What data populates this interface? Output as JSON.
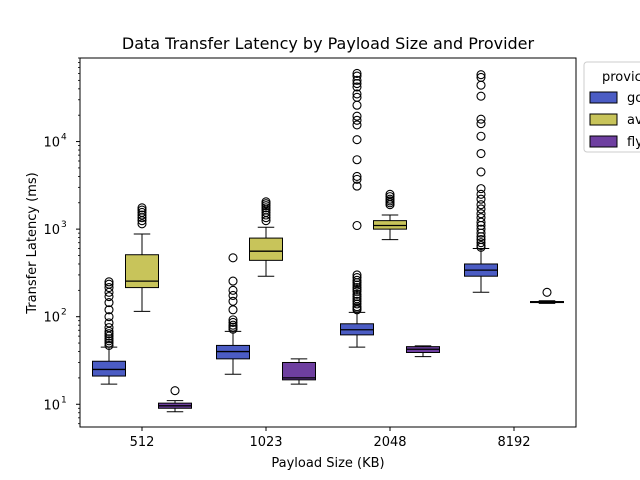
{
  "chart_data": {
    "type": "box",
    "title": "Data Transfer Latency by Payload Size and Provider",
    "xlabel": "Payload Size (KB)",
    "ylabel": "Transfer Latency (ms)",
    "y_scale": "log",
    "ylim": [
      5.5,
      90000
    ],
    "grid": false,
    "categories": [
      "512",
      "1023",
      "2048",
      "8192"
    ],
    "legend": {
      "title": "provic",
      "placement": "upper-right-outside",
      "entries": [
        "go",
        "av",
        "fly"
      ]
    },
    "series": [
      {
        "name": "go",
        "color": "#4b5cc4",
        "boxes": [
          {
            "category": "512",
            "whisker_low": 17,
            "q1": 21,
            "median": 25,
            "q3": 31,
            "whisker_high": 45,
            "outliers": [
              47,
              50,
              53,
              56,
              60,
              64,
              68,
              75,
              85,
              100,
              120,
              145,
              170,
              190,
              215,
              235,
              250
            ]
          },
          {
            "category": "1023",
            "whisker_low": 22,
            "q1": 33,
            "median": 40,
            "q3": 47,
            "whisker_high": 68,
            "outliers": [
              72,
              76,
              80,
              86,
              92,
              120,
              150,
              175,
              200,
              255,
              470
            ]
          },
          {
            "category": "2048",
            "whisker_low": 45,
            "q1": 62,
            "median": 71,
            "q3": 83,
            "whisker_high": 112,
            "outliers": [
              120,
              125,
              130,
              140,
              150,
              160,
              170,
              180,
              195,
              205,
              215,
              230,
              245,
              260,
              280,
              300,
              1100,
              3100,
              3700,
              4000,
              6200,
              10500,
              15500,
              17500,
              19500,
              26000,
              32000,
              35000,
              42000,
              46000,
              50000,
              56000,
              60000
            ]
          },
          {
            "category": "8192",
            "whisker_low": 190,
            "q1": 290,
            "median": 340,
            "q3": 400,
            "whisker_high": 600,
            "outliers": [
              620,
              650,
              700,
              760,
              820,
              900,
              1000,
              1100,
              1200,
              1350,
              1500,
              1700,
              1900,
              2200,
              2500,
              2900,
              4500,
              7300,
              11500,
              16000,
              18000,
              33000,
              44000,
              54000,
              58000
            ]
          }
        ]
      },
      {
        "name": "av",
        "color": "#c8c45a",
        "boxes": [
          {
            "category": "512",
            "whisker_low": 115,
            "q1": 215,
            "median": 255,
            "q3": 510,
            "whisker_high": 880,
            "outliers": [
              1150,
              1250,
              1350,
              1450,
              1550,
              1650,
              1750
            ]
          },
          {
            "category": "1023",
            "whisker_low": 290,
            "q1": 440,
            "median": 560,
            "q3": 790,
            "whisker_high": 1050,
            "outliers": [
              1250,
              1350,
              1450,
              1550,
              1650,
              1750,
              1850,
              1950,
              2050
            ]
          },
          {
            "category": "2048",
            "whisker_low": 760,
            "q1": 1000,
            "median": 1100,
            "q3": 1250,
            "whisker_high": 1450,
            "outliers": [
              1900,
              2000,
              2100,
              2200,
              2350,
              2500
            ]
          },
          {
            "category": "8192",
            "whisker_low": null,
            "q1": null,
            "median": null,
            "q3": null,
            "whisker_high": null,
            "outliers": []
          }
        ]
      },
      {
        "name": "fly",
        "color": "#6e3fa0",
        "boxes": [
          {
            "category": "512",
            "whisker_low": 8.2,
            "q1": 9,
            "median": 9.6,
            "q3": 10.3,
            "whisker_high": 11,
            "outliers": [
              14.3
            ]
          },
          {
            "category": "1023",
            "whisker_low": 17,
            "q1": 19,
            "median": 20,
            "q3": 30,
            "whisker_high": 33,
            "outliers": []
          },
          {
            "category": "2048",
            "whisker_low": 35,
            "q1": 39,
            "median": 42.5,
            "q3": 45.5,
            "whisker_high": 46.5,
            "outliers": []
          },
          {
            "category": "8192",
            "whisker_low": 142,
            "q1": 145,
            "median": 147,
            "q3": 149,
            "whisker_high": 152,
            "outliers": [
              190
            ]
          }
        ]
      }
    ],
    "y_ticks": [
      {
        "value": 10,
        "base": "10",
        "exp": "1"
      },
      {
        "value": 100,
        "base": "10",
        "exp": "2"
      },
      {
        "value": 1000,
        "base": "10",
        "exp": "3"
      },
      {
        "value": 10000,
        "base": "10",
        "exp": "4"
      }
    ]
  }
}
